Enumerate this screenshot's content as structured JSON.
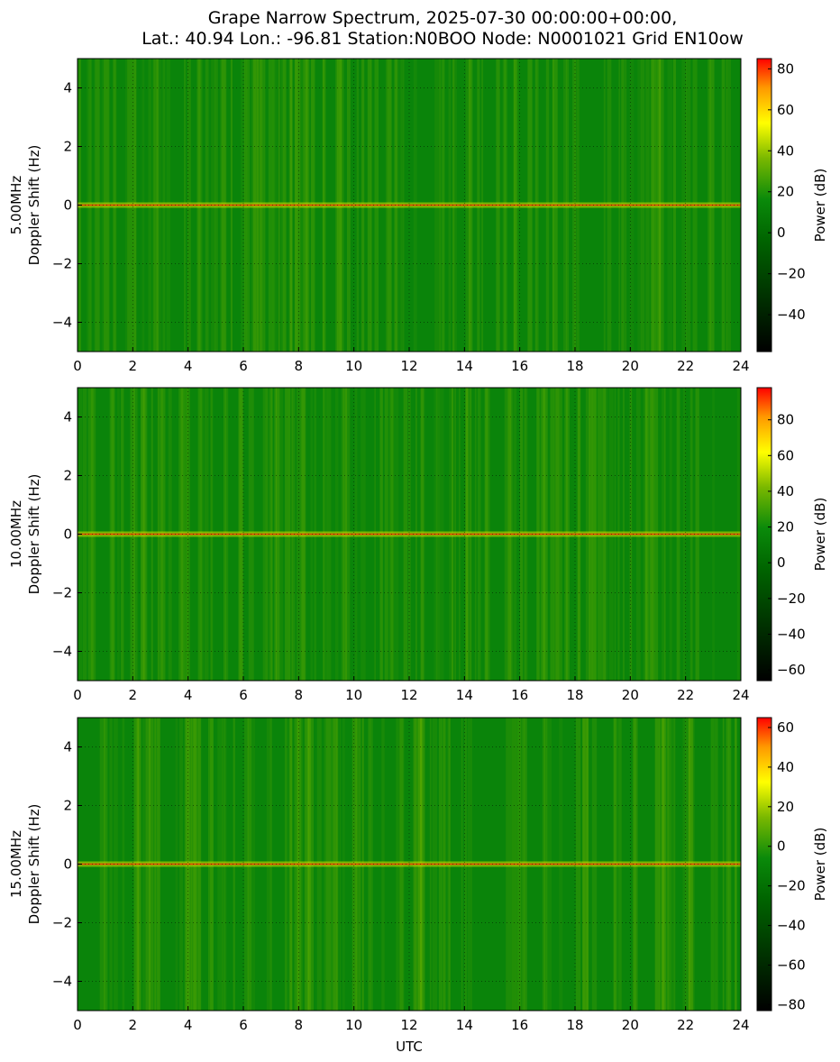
{
  "title_line1": "Grape Narrow Spectrum, 2025-07-30 00:00:00+00:00,",
  "title_line2": "Lat.: 40.94 Lon.: -96.81 Station:N0BOO Node: N0001021 Grid EN10ow",
  "xlabel": "UTC",
  "colors": {
    "cmap": [
      "#000000",
      "#006400",
      "#0a8a0a",
      "#7ab800",
      "#ffff00",
      "#ff9900",
      "#ff0000"
    ],
    "background": "#ffffff"
  },
  "chart_data": [
    {
      "type": "heatmap",
      "frequency_label": "5.00MHz",
      "ylabel": "Doppler Shift (Hz)",
      "colorbar_label": "Power (dB)",
      "xlim": [
        0,
        24
      ],
      "ylim": [
        -5,
        5
      ],
      "xticks": [
        0,
        2,
        4,
        6,
        8,
        10,
        12,
        14,
        16,
        18,
        20,
        22,
        24
      ],
      "yticks": [
        4,
        2,
        0,
        -2,
        -4
      ],
      "clim": [
        -58,
        85
      ],
      "cticks": [
        80,
        60,
        40,
        20,
        0,
        -20,
        -40
      ],
      "grid": true
    },
    {
      "type": "heatmap",
      "frequency_label": "10.00MHz",
      "ylabel": "Doppler Shift (Hz)",
      "colorbar_label": "Power (dB)",
      "xlim": [
        0,
        24
      ],
      "ylim": [
        -5,
        5
      ],
      "xticks": [
        0,
        2,
        4,
        6,
        8,
        10,
        12,
        14,
        16,
        18,
        20,
        22,
        24
      ],
      "yticks": [
        4,
        2,
        0,
        -2,
        -4
      ],
      "clim": [
        -66,
        98
      ],
      "cticks": [
        80,
        60,
        40,
        20,
        0,
        -20,
        -40,
        -60
      ],
      "grid": true
    },
    {
      "type": "heatmap",
      "frequency_label": "15.00MHz",
      "ylabel": "Doppler Shift (Hz)",
      "colorbar_label": "Power (dB)",
      "xlim": [
        0,
        24
      ],
      "ylim": [
        -5,
        5
      ],
      "xticks": [
        0,
        2,
        4,
        6,
        8,
        10,
        12,
        14,
        16,
        18,
        20,
        22,
        24
      ],
      "yticks": [
        4,
        2,
        0,
        -2,
        -4
      ],
      "clim": [
        -83,
        65
      ],
      "cticks": [
        60,
        40,
        20,
        0,
        -20,
        -40,
        -60,
        -80
      ],
      "grid": true
    }
  ]
}
